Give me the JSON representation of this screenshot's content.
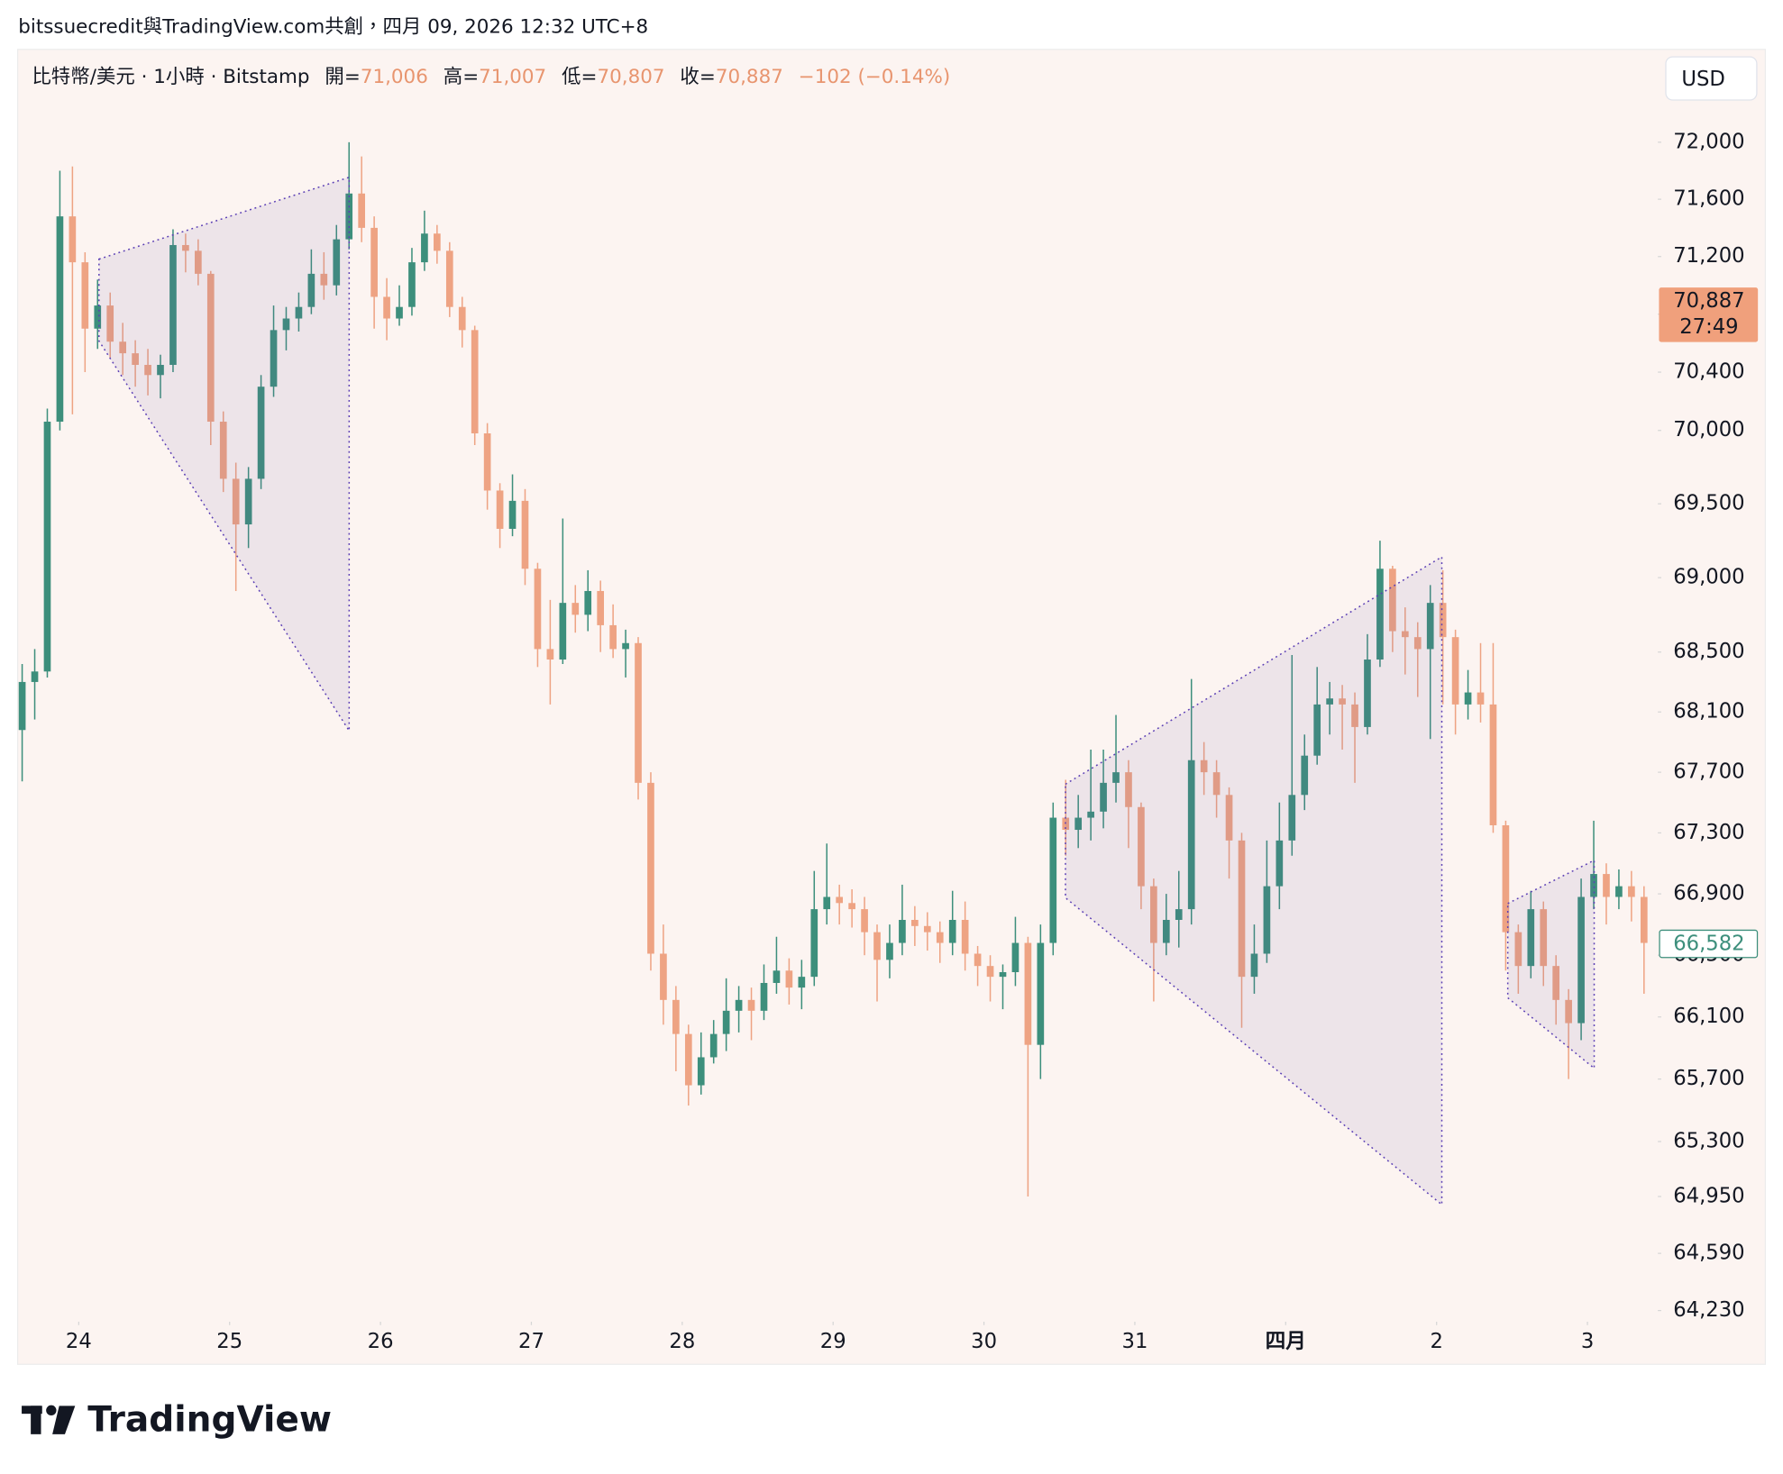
{
  "attribution": "bitssuecredit與TradingView.com共創，四月 09, 2026 12:32 UTC+8",
  "chart_data": {
    "type": "candlestick",
    "legend": {
      "symbol": "比特幣/美元 · 1小時 · Bitstamp",
      "items": [
        {
          "label": "開=",
          "value": "71,006"
        },
        {
          "label": "高=",
          "value": "71,007"
        },
        {
          "label": "低=",
          "value": "70,807"
        },
        {
          "label": "收=",
          "value": "70,887"
        }
      ],
      "change": "−102 (−0.14%)"
    },
    "currency": "USD",
    "log_scale": true,
    "up_color": "#3d8f7c",
    "down_color": "#eea383",
    "xlim": [
      -9.8,
      251.2
    ],
    "xticks": [
      {
        "value": 0,
        "label": "24"
      },
      {
        "value": 24,
        "label": "25"
      },
      {
        "value": 48,
        "label": "26"
      },
      {
        "value": 72,
        "label": "27"
      },
      {
        "value": 96,
        "label": "28"
      },
      {
        "value": 120,
        "label": "29"
      },
      {
        "value": 144,
        "label": "30"
      },
      {
        "value": 168,
        "label": "31"
      },
      {
        "value": 192,
        "label": "四月"
      },
      {
        "value": 216,
        "label": "2"
      },
      {
        "value": 240,
        "label": "3"
      }
    ],
    "ylim": [
      64160,
      72660
    ],
    "yticks": [
      {
        "value": 72000,
        "label": "72,000"
      },
      {
        "value": 71600,
        "label": "71,600"
      },
      {
        "value": 71200,
        "label": "71,200"
      },
      {
        "value": 70800,
        "label": "70,800"
      },
      {
        "value": 70400,
        "label": "70,400"
      },
      {
        "value": 70000,
        "label": "70,000"
      },
      {
        "value": 69500,
        "label": "69,500"
      },
      {
        "value": 69000,
        "label": "69,000"
      },
      {
        "value": 68500,
        "label": "68,500"
      },
      {
        "value": 68100,
        "label": "68,100"
      },
      {
        "value": 67700,
        "label": "67,700"
      },
      {
        "value": 67300,
        "label": "67,300"
      },
      {
        "value": 66900,
        "label": "66,900"
      },
      {
        "value": 66500,
        "label": "66,500"
      },
      {
        "value": 66100,
        "label": "66,100"
      },
      {
        "value": 65700,
        "label": "65,700"
      },
      {
        "value": 65300,
        "label": "65,300"
      },
      {
        "value": 64950,
        "label": "64,950"
      },
      {
        "value": 64590,
        "label": "64,590"
      },
      {
        "value": 64230,
        "label": "64,230"
      }
    ],
    "last_price": {
      "label": "70,887",
      "countdown": "27:49"
    },
    "marker_label": "66,582",
    "x": [
      -9,
      -7,
      -5,
      -3,
      -1,
      1,
      3,
      5,
      7,
      9,
      11,
      13,
      15,
      17,
      19,
      21,
      23,
      25,
      27,
      29,
      31,
      33,
      35,
      37,
      39,
      41,
      43,
      45,
      47,
      49,
      51,
      53,
      55,
      57,
      59,
      61,
      63,
      65,
      67,
      69,
      71,
      73,
      75,
      77,
      79,
      81,
      83,
      85,
      87,
      89,
      91,
      93,
      95,
      97,
      99,
      101,
      103,
      105,
      107,
      109,
      111,
      113,
      115,
      117,
      119,
      121,
      123,
      125,
      127,
      129,
      131,
      133,
      135,
      137,
      139,
      141,
      143,
      145,
      147,
      149,
      151,
      153,
      155,
      157,
      159,
      161,
      163,
      165,
      167,
      169,
      171,
      173,
      175,
      177,
      179,
      181,
      183,
      185,
      187,
      189,
      191,
      193,
      195,
      197,
      199,
      201,
      203,
      205,
      207,
      209,
      211,
      213,
      215,
      217,
      219,
      221,
      223,
      225,
      227,
      229,
      231,
      233,
      235,
      237,
      239,
      241,
      243,
      245,
      247,
      249
    ],
    "ohlc": [
      [
        67980,
        68420,
        67640,
        68300
      ],
      [
        68300,
        68520,
        68050,
        68370
      ],
      [
        68370,
        70150,
        68330,
        70060
      ],
      [
        70060,
        71800,
        70000,
        71480
      ],
      [
        71480,
        71830,
        70110,
        71160
      ],
      [
        71160,
        71230,
        70400,
        70700
      ],
      [
        70700,
        71040,
        70560,
        70860
      ],
      [
        70860,
        70950,
        70500,
        70610
      ],
      [
        70610,
        70740,
        70380,
        70530
      ],
      [
        70530,
        70620,
        70300,
        70450
      ],
      [
        70450,
        70560,
        70240,
        70380
      ],
      [
        70380,
        70520,
        70220,
        70450
      ],
      [
        70450,
        71390,
        70400,
        71280
      ],
      [
        71280,
        71360,
        71090,
        71240
      ],
      [
        71240,
        71320,
        71000,
        71080
      ],
      [
        71080,
        71100,
        69900,
        70060
      ],
      [
        70060,
        70130,
        69580,
        69670
      ],
      [
        69670,
        69780,
        68910,
        69360
      ],
      [
        69360,
        69750,
        69200,
        69670
      ],
      [
        69670,
        70380,
        69600,
        70300
      ],
      [
        70300,
        70860,
        70230,
        70690
      ],
      [
        70690,
        70850,
        70550,
        70770
      ],
      [
        70770,
        70950,
        70680,
        70850
      ],
      [
        70850,
        71250,
        70800,
        71080
      ],
      [
        71080,
        71230,
        70900,
        71000
      ],
      [
        71000,
        71420,
        70930,
        71320
      ],
      [
        71320,
        72000,
        71250,
        71640
      ],
      [
        71640,
        71900,
        71300,
        71400
      ],
      [
        71400,
        71480,
        70700,
        70920
      ],
      [
        70920,
        71050,
        70620,
        70770
      ],
      [
        70770,
        71000,
        70720,
        70850
      ],
      [
        70850,
        71260,
        70790,
        71160
      ],
      [
        71160,
        71520,
        71100,
        71360
      ],
      [
        71360,
        71420,
        71150,
        71240
      ],
      [
        71240,
        71300,
        70780,
        70850
      ],
      [
        70850,
        70920,
        70570,
        70690
      ],
      [
        70690,
        70720,
        69900,
        69980
      ],
      [
        69980,
        70050,
        69460,
        69590
      ],
      [
        69590,
        69640,
        69200,
        69330
      ],
      [
        69330,
        69700,
        69280,
        69520
      ],
      [
        69520,
        69600,
        68950,
        69060
      ],
      [
        69060,
        69100,
        68400,
        68520
      ],
      [
        68520,
        68850,
        68150,
        68450
      ],
      [
        68450,
        69400,
        68420,
        68830
      ],
      [
        68830,
        68950,
        68630,
        68750
      ],
      [
        68750,
        69050,
        68640,
        68910
      ],
      [
        68910,
        68980,
        68500,
        68680
      ],
      [
        68680,
        68820,
        68460,
        68520
      ],
      [
        68520,
        68650,
        68330,
        68560
      ],
      [
        68560,
        68600,
        67520,
        67630
      ],
      [
        67630,
        67700,
        66400,
        66510
      ],
      [
        66510,
        66700,
        66050,
        66210
      ],
      [
        66210,
        66300,
        65750,
        65990
      ],
      [
        65990,
        66050,
        65530,
        65660
      ],
      [
        65660,
        66000,
        65600,
        65840
      ],
      [
        65840,
        66080,
        65800,
        65990
      ],
      [
        65990,
        66350,
        65880,
        66140
      ],
      [
        66140,
        66300,
        66000,
        66210
      ],
      [
        66210,
        66290,
        65950,
        66140
      ],
      [
        66140,
        66440,
        66080,
        66320
      ],
      [
        66320,
        66620,
        66250,
        66400
      ],
      [
        66400,
        66480,
        66180,
        66290
      ],
      [
        66290,
        66470,
        66150,
        66360
      ],
      [
        66360,
        67050,
        66300,
        66800
      ],
      [
        66800,
        67230,
        66700,
        66880
      ],
      [
        66880,
        66960,
        66700,
        66840
      ],
      [
        66840,
        66930,
        66680,
        66800
      ],
      [
        66800,
        66880,
        66500,
        66650
      ],
      [
        66650,
        66700,
        66200,
        66470
      ],
      [
        66470,
        66700,
        66350,
        66580
      ],
      [
        66580,
        66960,
        66500,
        66730
      ],
      [
        66730,
        66820,
        66560,
        66690
      ],
      [
        66690,
        66780,
        66530,
        66650
      ],
      [
        66650,
        66720,
        66450,
        66580
      ],
      [
        66580,
        66920,
        66500,
        66730
      ],
      [
        66730,
        66850,
        66400,
        66510
      ],
      [
        66510,
        66560,
        66300,
        66430
      ],
      [
        66430,
        66500,
        66200,
        66360
      ],
      [
        66360,
        66440,
        66150,
        66390
      ],
      [
        66390,
        66750,
        66300,
        66580
      ],
      [
        66580,
        66620,
        64950,
        65920
      ],
      [
        65920,
        66700,
        65700,
        66580
      ],
      [
        66580,
        67500,
        66500,
        67400
      ],
      [
        67400,
        67650,
        67150,
        67320
      ],
      [
        67320,
        67550,
        67200,
        67400
      ],
      [
        67400,
        67850,
        67250,
        67440
      ],
      [
        67440,
        67850,
        67330,
        67630
      ],
      [
        67630,
        68080,
        67500,
        67700
      ],
      [
        67700,
        67780,
        67200,
        67470
      ],
      [
        67470,
        67500,
        66800,
        66950
      ],
      [
        66950,
        67000,
        66200,
        66580
      ],
      [
        66580,
        66900,
        66500,
        66730
      ],
      [
        66730,
        67050,
        66550,
        66800
      ],
      [
        66800,
        68320,
        66700,
        67780
      ],
      [
        67780,
        67900,
        67550,
        67700
      ],
      [
        67700,
        67780,
        67400,
        67550
      ],
      [
        67550,
        67600,
        67000,
        67250
      ],
      [
        67250,
        67300,
        66030,
        66360
      ],
      [
        66360,
        66700,
        66250,
        66510
      ],
      [
        66510,
        67250,
        66450,
        66950
      ],
      [
        66950,
        67500,
        66800,
        67250
      ],
      [
        67250,
        68480,
        67150,
        67550
      ],
      [
        67550,
        67950,
        67450,
        67810
      ],
      [
        67810,
        68400,
        67750,
        68150
      ],
      [
        68150,
        68300,
        67950,
        68190
      ],
      [
        68190,
        68280,
        67850,
        68150
      ],
      [
        68150,
        68230,
        67630,
        68000
      ],
      [
        68000,
        68620,
        67950,
        68450
      ],
      [
        68450,
        69250,
        68400,
        69060
      ],
      [
        69060,
        69080,
        68500,
        68640
      ],
      [
        68640,
        68800,
        68350,
        68600
      ],
      [
        68600,
        68700,
        68200,
        68520
      ],
      [
        68520,
        68950,
        67920,
        68830
      ],
      [
        68830,
        69050,
        68150,
        68600
      ],
      [
        68600,
        68650,
        67950,
        68150
      ],
      [
        68150,
        68380,
        68050,
        68230
      ],
      [
        68230,
        68560,
        68030,
        68150
      ],
      [
        68150,
        68560,
        67300,
        67350
      ],
      [
        67350,
        67380,
        66400,
        66650
      ],
      [
        66650,
        66700,
        66250,
        66430
      ],
      [
        66430,
        66920,
        66350,
        66800
      ],
      [
        66800,
        66850,
        66300,
        66430
      ],
      [
        66430,
        66500,
        66050,
        66210
      ],
      [
        66210,
        66280,
        65700,
        66060
      ],
      [
        66060,
        67000,
        65950,
        66880
      ],
      [
        66880,
        67380,
        66800,
        67030
      ],
      [
        67030,
        67100,
        66700,
        66880
      ],
      [
        66880,
        67060,
        66800,
        66950
      ],
      [
        66950,
        67050,
        66720,
        66880
      ],
      [
        66880,
        66950,
        66250,
        66580
      ]
    ]
  },
  "footer": {
    "logo": "TradingView"
  }
}
